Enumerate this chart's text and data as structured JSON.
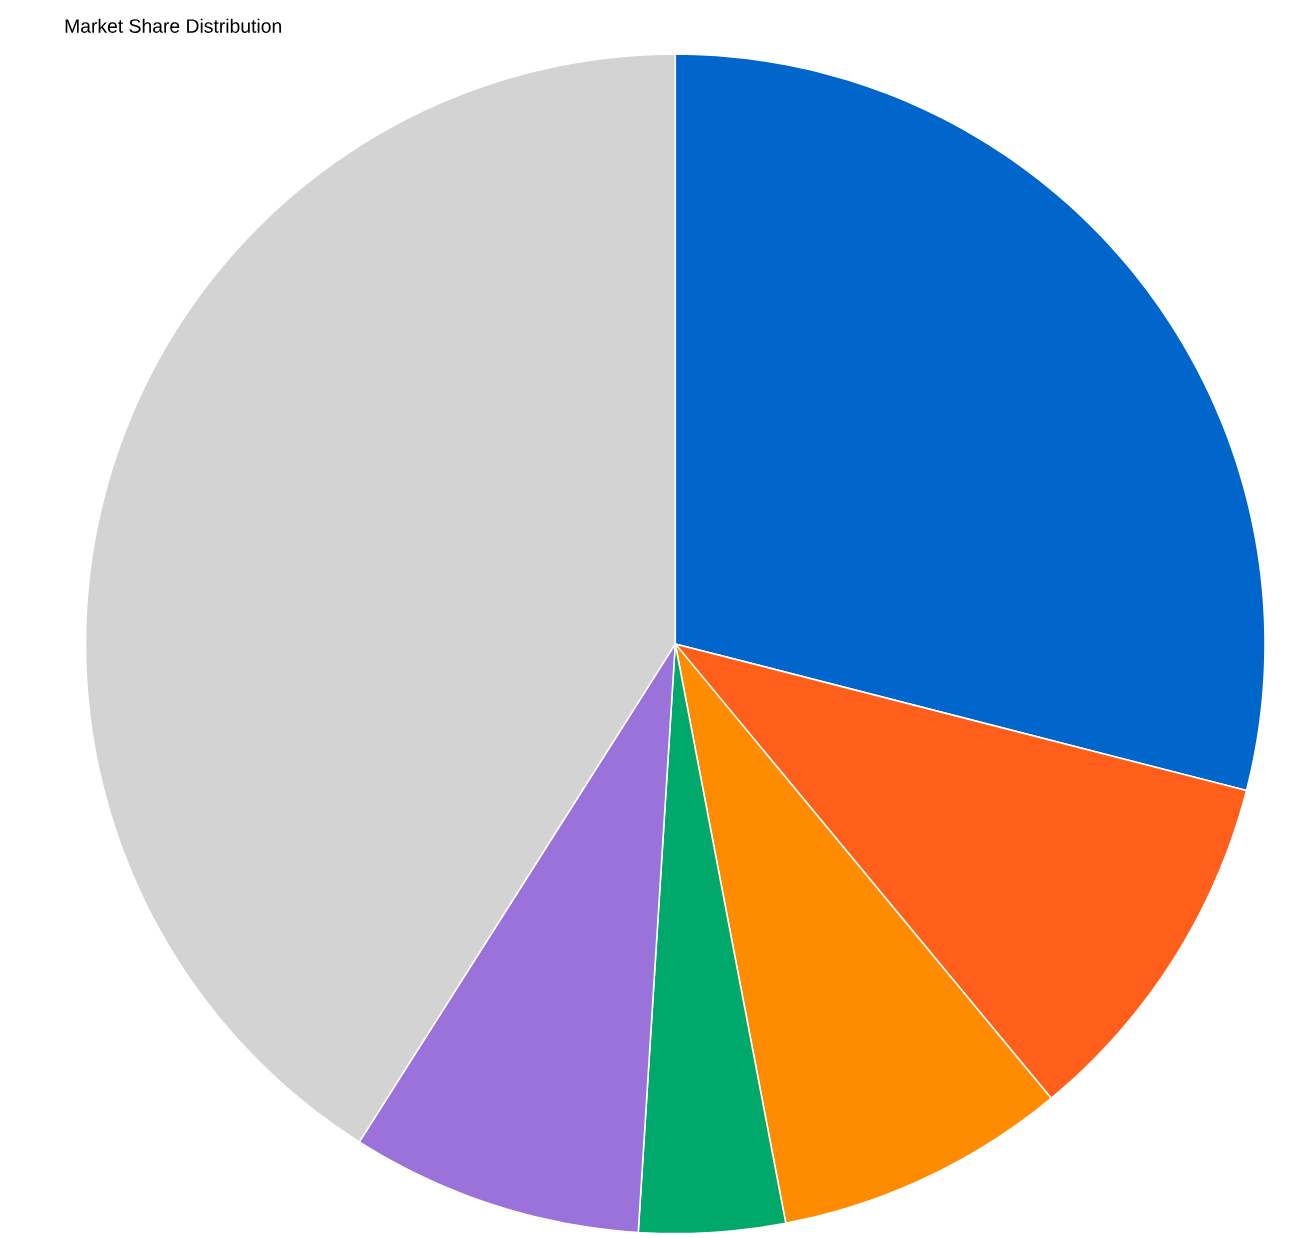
{
  "chart_data": {
    "type": "pie",
    "title": "Market Share Distribution",
    "categories": [
      null,
      null,
      null,
      null,
      null,
      null
    ],
    "values": [
      29,
      10,
      8,
      4,
      8,
      41
    ],
    "colors": [
      "#0066cc",
      "#ff5f1a",
      "#ff8c00",
      "#00a86b",
      "#9b72d9",
      "#d3d3d3"
    ]
  }
}
